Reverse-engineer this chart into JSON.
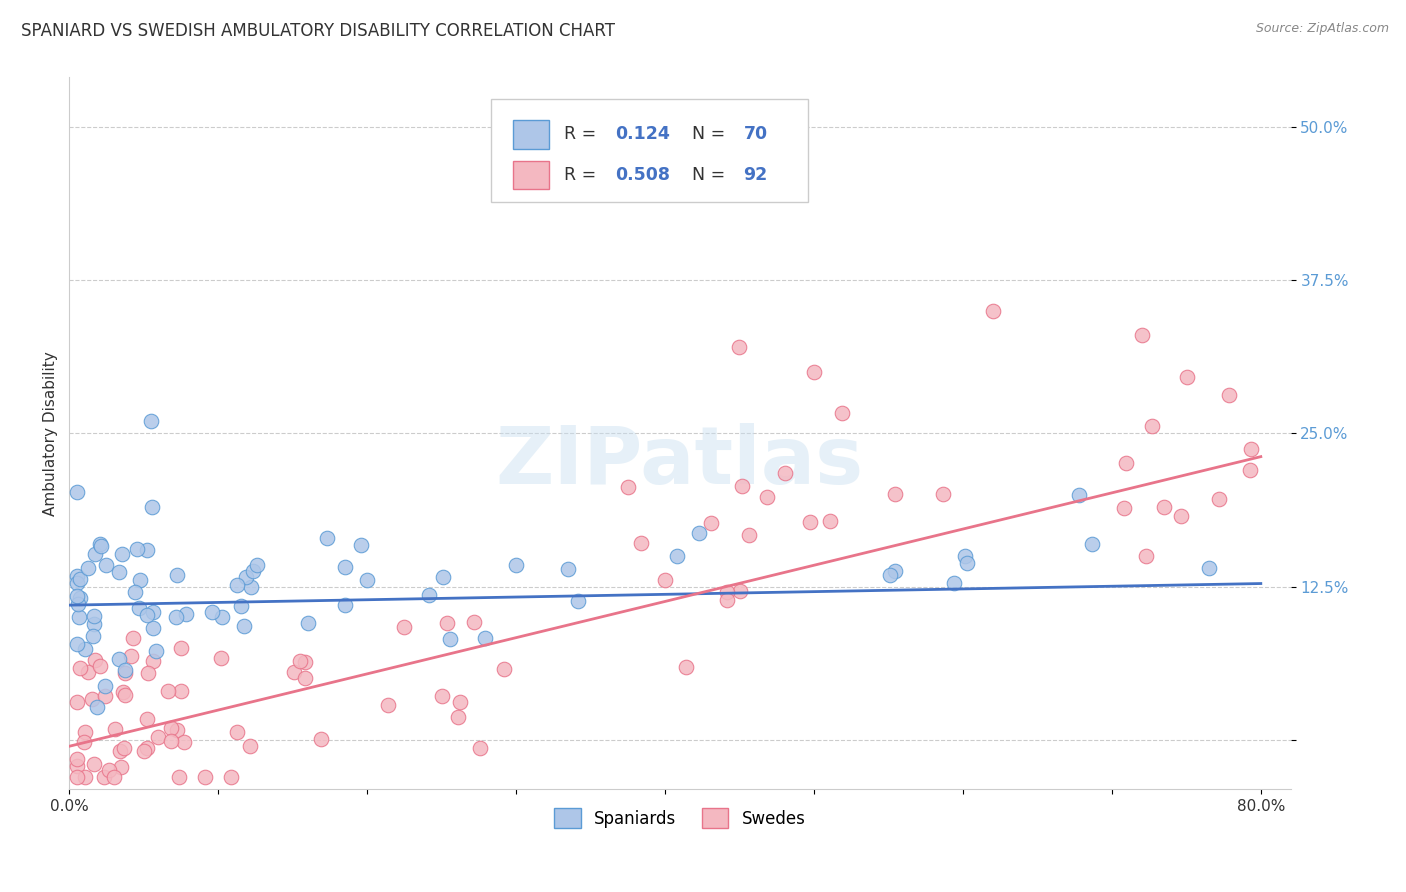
{
  "title": "SPANIARD VS SWEDISH AMBULATORY DISABILITY CORRELATION CHART",
  "source": "Source: ZipAtlas.com",
  "ylabel": "Ambulatory Disability",
  "xlim": [
    0.0,
    0.82
  ],
  "ylim": [
    -0.04,
    0.54
  ],
  "yticks": [
    0.0,
    0.125,
    0.25,
    0.375,
    0.5
  ],
  "ytick_labels": [
    "",
    "12.5%",
    "25.0%",
    "37.5%",
    "50.0%"
  ],
  "xticks": [
    0.0,
    0.1,
    0.2,
    0.3,
    0.4,
    0.5,
    0.6,
    0.7,
    0.8
  ],
  "xtick_labels": [
    "0.0%",
    "",
    "",
    "",
    "",
    "",
    "",
    "",
    "80.0%"
  ],
  "spaniard_color": "#aec6e8",
  "swede_color": "#f4b8c1",
  "spaniard_edge": "#5b9bd5",
  "swede_edge": "#e8748a",
  "spaniard_R": 0.124,
  "spaniard_N": 70,
  "swede_R": 0.508,
  "swede_N": 92,
  "legend_label1": "Spaniards",
  "legend_label2": "Swedes",
  "watermark": "ZIPatlas",
  "background_color": "#ffffff",
  "grid_color": "#cccccc",
  "spaniard_line_color": "#4472c4",
  "swede_line_color": "#e8748a",
  "spaniard_trend_slope": 0.022,
  "spaniard_trend_intercept": 0.11,
  "swede_trend_slope": 0.295,
  "swede_trend_intercept": -0.005
}
